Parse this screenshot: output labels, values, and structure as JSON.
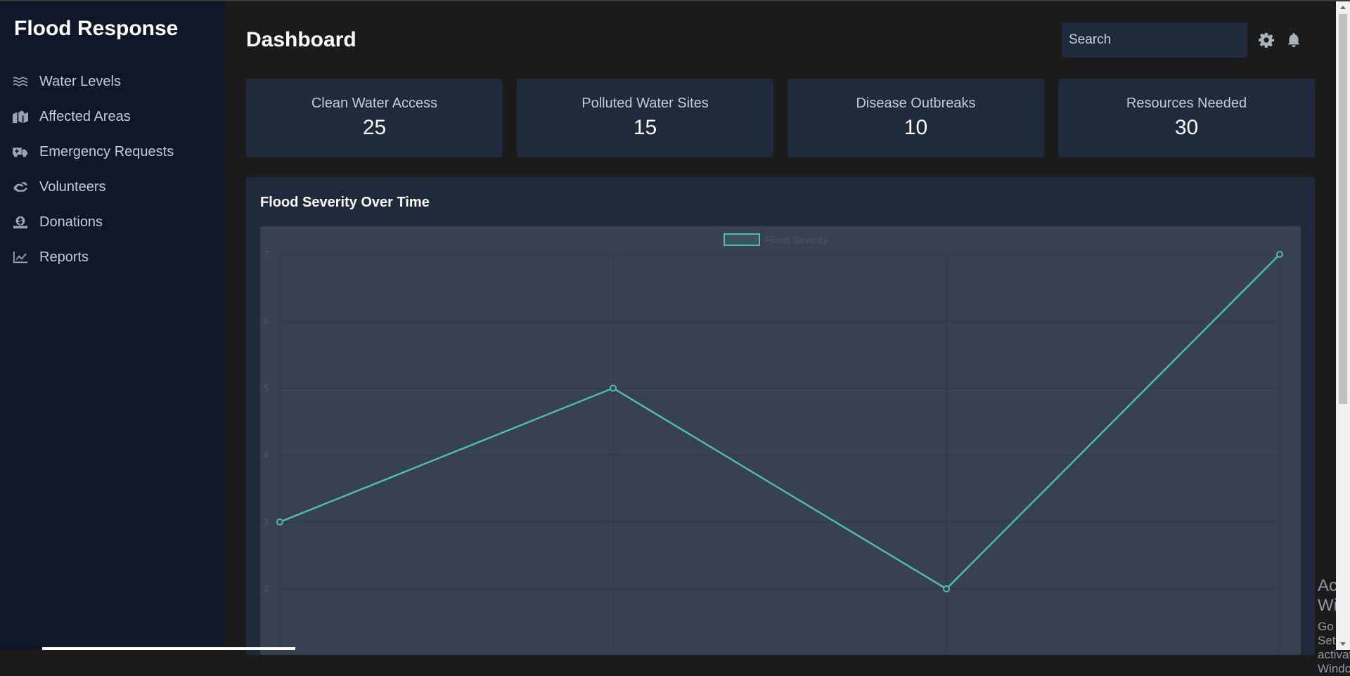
{
  "app": {
    "brand": "Flood Response"
  },
  "sidebar": {
    "items": [
      {
        "label": "Water Levels",
        "icon": "water-icon"
      },
      {
        "label": "Affected Areas",
        "icon": "map-marker-icon"
      },
      {
        "label": "Emergency Requests",
        "icon": "ambulance-icon"
      },
      {
        "label": "Volunteers",
        "icon": "hands-helping-icon"
      },
      {
        "label": "Donations",
        "icon": "donate-icon"
      },
      {
        "label": "Reports",
        "icon": "chart-line-icon"
      }
    ]
  },
  "header": {
    "title": "Dashboard",
    "search_placeholder": "Search",
    "settings_icon": "gear-icon",
    "notifications_icon": "bell-icon"
  },
  "cards": [
    {
      "label": "Clean Water Access",
      "value": "25"
    },
    {
      "label": "Polluted Water Sites",
      "value": "15"
    },
    {
      "label": "Disease Outbreaks",
      "value": "10"
    },
    {
      "label": "Resources Needed",
      "value": "30"
    }
  ],
  "chart_panel": {
    "title": "Flood Severity Over Time"
  },
  "chart_data": {
    "type": "line",
    "title": "Flood Severity Over Time",
    "series": [
      {
        "name": "Flood Severity",
        "values": [
          3,
          5,
          2,
          7
        ],
        "color": "#4fb9b3"
      }
    ],
    "y_ticks": [
      "7",
      "6",
      "5",
      "4",
      "3",
      "2"
    ],
    "ylim": [
      1,
      7
    ],
    "grid": true,
    "legend": "top"
  },
  "watermark": {
    "line1": "Activate Windows",
    "line2": "Go to Settings to activate Windows."
  },
  "colors": {
    "sidebar_bg": "#0f1729",
    "main_bg": "#1b1b1b",
    "card_bg": "#1f2a3c",
    "chart_bg": "#374151",
    "accent": "#4fb9b3"
  }
}
